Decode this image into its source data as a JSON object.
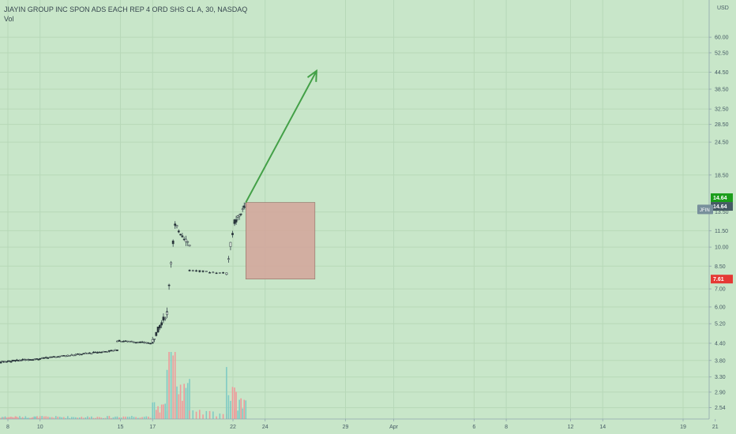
{
  "header": {
    "symbol_line": "JIAYIN GROUP INC SPON ADS EACH REP 4 ORD SHS CL A, 30, NASDAQ",
    "vol_label": "Vol"
  },
  "chart_data": {
    "type": "candlestick",
    "symbol": "JFIN",
    "currency": "USD",
    "interval": "30",
    "exchange": "NASDAQ",
    "scale": "log",
    "grid": true,
    "ylim": [
      2.4,
      75
    ],
    "y_ticks": [
      "60.00",
      "52.50",
      "44.50",
      "38.50",
      "32.50",
      "28.50",
      "24.50",
      "18.50",
      "13.50",
      "11.50",
      "10.00",
      "8.50",
      "7.00",
      "6.00",
      "5.20",
      "4.40",
      "3.80",
      "3.30",
      "2.90",
      "2.54"
    ],
    "y_tick_values": [
      60,
      52.5,
      44.5,
      38.5,
      32.5,
      28.5,
      24.5,
      18.5,
      13.5,
      11.5,
      10,
      8.5,
      7,
      6,
      5.2,
      4.4,
      3.8,
      3.3,
      2.9,
      2.54
    ],
    "x_ticks": [
      {
        "label": "8",
        "day": 8
      },
      {
        "label": "10",
        "day": 10
      },
      {
        "label": "15",
        "day": 15
      },
      {
        "label": "17",
        "day": 17
      },
      {
        "label": "22",
        "day": 22
      },
      {
        "label": "24",
        "day": 24
      },
      {
        "label": "29",
        "day": 29
      },
      {
        "label": "Apr",
        "day": 32
      },
      {
        "label": "6",
        "day": 37
      },
      {
        "label": "8",
        "day": 39
      },
      {
        "label": "12",
        "day": 43
      },
      {
        "label": "14",
        "day": 45
      },
      {
        "label": "19",
        "day": 50
      },
      {
        "label": "21",
        "day": 52
      }
    ],
    "price_labels": [
      {
        "text": "14.64",
        "value": 14.64,
        "color": "#1b9e1b"
      },
      {
        "text": "14.64",
        "value": 14.64,
        "color": "#455a64"
      },
      {
        "text": "7.61",
        "value": 7.61,
        "color": "#e53935"
      }
    ],
    "symbol_tag": {
      "text": "JFIN",
      "value": 13.8
    },
    "segments": [
      {
        "t0": 7.2,
        "t1": 10.0,
        "p0": 3.74,
        "p1": 3.86,
        "n": 32,
        "vol": 0.2
      },
      {
        "t0": 10.0,
        "t1": 14.8,
        "p0": 3.86,
        "p1": 4.15,
        "n": 40,
        "vol": 0.2
      },
      {
        "t0": 14.8,
        "t1": 17.0,
        "p0": 4.5,
        "p1": 4.4,
        "n": 18,
        "vol": 0.25
      },
      {
        "t0": 17.0,
        "t1": 17.9,
        "p0": 4.5,
        "p1": 5.7,
        "n": 9,
        "vol": 1.2
      },
      {
        "t0": 17.9,
        "t1": 18.4,
        "p0": 5.7,
        "p1": 12.0,
        "n": 5,
        "vol": 6
      },
      {
        "t0": 18.4,
        "t1": 19.3,
        "p0": 12.0,
        "p1": 10.2,
        "n": 9,
        "vol": 3.5
      },
      {
        "t0": 19.3,
        "t1": 21.6,
        "p0": 8.2,
        "p1": 8.0,
        "n": 12,
        "vol": 0.6
      },
      {
        "t0": 21.6,
        "t1": 22.1,
        "p0": 8.0,
        "p1": 12.4,
        "n": 5,
        "vol": 3.5
      },
      {
        "t0": 22.1,
        "t1": 22.8,
        "p0": 12.2,
        "p1": 14.3,
        "n": 8,
        "vol": 1.8
      }
    ],
    "rect": {
      "t0": 22.8,
      "t1": 27.1,
      "p_top": 14.64,
      "p_bottom": 7.61,
      "color": "#d4a39a"
    },
    "arrow": {
      "t0": 22.8,
      "p0": 14.64,
      "t1": 27.2,
      "p1": 45.0,
      "color": "#43a047"
    }
  }
}
